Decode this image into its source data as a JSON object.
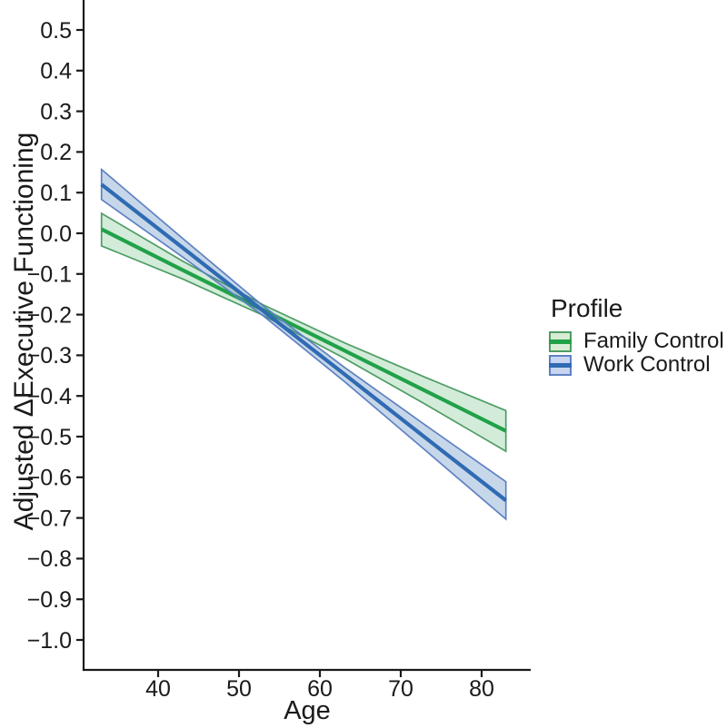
{
  "figure": {
    "background": "#FFFFFF",
    "text_color": "#1A1A1A"
  },
  "chart_data": {
    "type": "line",
    "title": "",
    "xlabel": "Age",
    "ylabel": "Adjusted ΔExecutive Functioning",
    "x_ticks": [
      40,
      50,
      60,
      70,
      80
    ],
    "y_ticks": [
      0.5,
      0.4,
      0.3,
      0.2,
      0.1,
      0.0,
      -0.1,
      -0.2,
      -0.3,
      -0.4,
      -0.5,
      -0.6,
      -0.7,
      -0.8,
      -0.9,
      -1.0
    ],
    "xlim": [
      31,
      86
    ],
    "ylim": [
      -1.07,
      0.57
    ],
    "grid": false,
    "axis_lines": "left-bottom",
    "legend": {
      "title": "Profile",
      "position": "right"
    },
    "series": [
      {
        "name": "Family Control",
        "line_color": "#21A148",
        "band_fill": "rgba(33,161,72,0.20)",
        "band_edge": "#4E9D64",
        "swatch_fill": "#D9ECD4",
        "x": [
          33,
          43,
          53,
          63,
          73,
          83
        ],
        "y": [
          0.01,
          -0.09,
          -0.189,
          -0.288,
          -0.387,
          -0.486
        ],
        "lower": [
          -0.031,
          -0.112,
          -0.202,
          -0.307,
          -0.42,
          -0.536
        ],
        "upper": [
          0.049,
          -0.068,
          -0.176,
          -0.269,
          -0.354,
          -0.436
        ]
      },
      {
        "name": "Work Control",
        "line_color": "#2F6BB3",
        "band_fill": "rgba(47,107,179,0.27)",
        "band_edge": "#5E81C2",
        "swatch_fill": "#C7D5F0",
        "x": [
          33,
          43,
          53,
          63,
          73,
          83
        ],
        "y": [
          0.12,
          -0.035,
          -0.191,
          -0.346,
          -0.502,
          -0.657
        ],
        "lower": [
          0.083,
          -0.058,
          -0.203,
          -0.364,
          -0.533,
          -0.703
        ],
        "upper": [
          0.157,
          -0.012,
          -0.179,
          -0.329,
          -0.471,
          -0.611
        ]
      }
    ]
  }
}
